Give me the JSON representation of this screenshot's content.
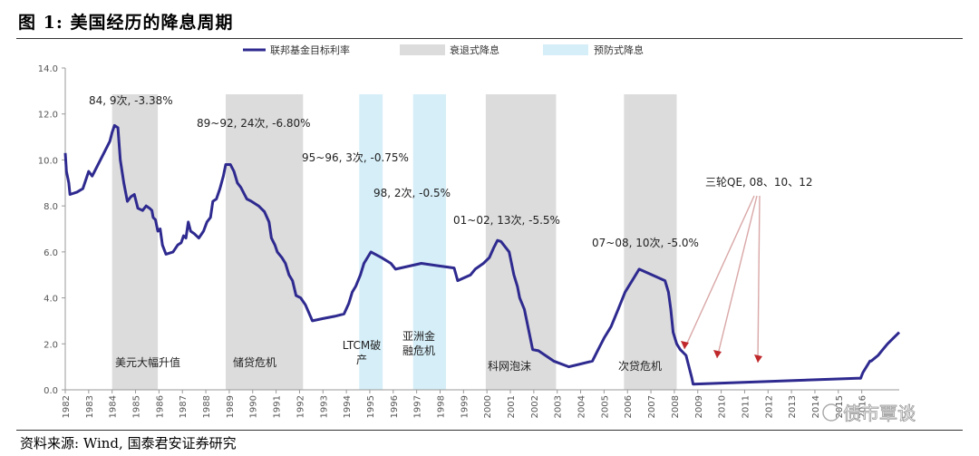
{
  "figure": {
    "title": "图 1: 美国经历的降息周期",
    "source": "资料来源: Wind, 国泰君安证券研究",
    "watermark": "债市覃谈"
  },
  "chart_data": {
    "type": "line",
    "title": "",
    "xlabel": "",
    "ylabel": "",
    "ylim": [
      0,
      14
    ],
    "xlim": [
      1982,
      2016.4
    ],
    "y_ticks": [
      "0.0",
      "2.0",
      "4.0",
      "6.0",
      "8.0",
      "10.0",
      "12.0",
      "14.0"
    ],
    "x_ticks": [
      "1982",
      "1983",
      "1984",
      "1985",
      "1986",
      "1987",
      "1988",
      "1989",
      "1990",
      "1991",
      "1992",
      "1993",
      "1994",
      "1995",
      "1996",
      "1997",
      "1998",
      "1999",
      "2000",
      "2001",
      "2002",
      "2003",
      "2004",
      "2005",
      "2006",
      "2007",
      "2008",
      "2009",
      "2010",
      "2011",
      "2012",
      "2013",
      "2014",
      "2015",
      "2016"
    ],
    "grid": false,
    "legend_position": "top",
    "legend": [
      {
        "label": "联邦基金目标利率",
        "kind": "line",
        "color": "#2e2a8f"
      },
      {
        "label": "衰退式降息",
        "kind": "box",
        "color": "#dcdcdc"
      },
      {
        "label": "预防式降息",
        "kind": "box",
        "color": "#d5eef8"
      }
    ],
    "series": [
      {
        "name": "联邦基金目标利率",
        "color": "#2e2a8f",
        "points": [
          [
            1982.0,
            10.3
          ],
          [
            1982.05,
            9.5
          ],
          [
            1982.15,
            9.0
          ],
          [
            1982.2,
            8.5
          ],
          [
            1982.5,
            8.6
          ],
          [
            1982.75,
            8.75
          ],
          [
            1983.0,
            9.5
          ],
          [
            1983.15,
            9.3
          ],
          [
            1983.3,
            9.6
          ],
          [
            1983.6,
            10.2
          ],
          [
            1983.9,
            10.8
          ],
          [
            1984.0,
            11.2
          ],
          [
            1984.1,
            11.5
          ],
          [
            1984.25,
            11.4
          ],
          [
            1984.35,
            10.0
          ],
          [
            1984.5,
            9.0
          ],
          [
            1984.65,
            8.2
          ],
          [
            1984.8,
            8.4
          ],
          [
            1984.95,
            8.5
          ],
          [
            1985.1,
            7.9
          ],
          [
            1985.3,
            7.8
          ],
          [
            1985.45,
            8.0
          ],
          [
            1985.6,
            7.9
          ],
          [
            1985.7,
            7.8
          ],
          [
            1985.75,
            7.5
          ],
          [
            1985.85,
            7.4
          ],
          [
            1985.95,
            6.9
          ],
          [
            1986.05,
            7.0
          ],
          [
            1986.15,
            6.3
          ],
          [
            1986.3,
            5.9
          ],
          [
            1986.6,
            6.0
          ],
          [
            1986.8,
            6.3
          ],
          [
            1986.95,
            6.4
          ],
          [
            1987.05,
            6.7
          ],
          [
            1987.15,
            6.6
          ],
          [
            1987.25,
            7.3
          ],
          [
            1987.35,
            6.9
          ],
          [
            1987.5,
            6.8
          ],
          [
            1987.7,
            6.6
          ],
          [
            1987.9,
            6.9
          ],
          [
            1988.05,
            7.3
          ],
          [
            1988.2,
            7.5
          ],
          [
            1988.3,
            8.2
          ],
          [
            1988.45,
            8.3
          ],
          [
            1988.6,
            8.75
          ],
          [
            1988.75,
            9.3
          ],
          [
            1988.85,
            9.8
          ],
          [
            1989.05,
            9.8
          ],
          [
            1989.2,
            9.5
          ],
          [
            1989.35,
            9.0
          ],
          [
            1989.5,
            8.8
          ],
          [
            1989.65,
            8.5
          ],
          [
            1989.75,
            8.3
          ],
          [
            1989.95,
            8.2
          ],
          [
            1990.25,
            8.0
          ],
          [
            1990.5,
            7.75
          ],
          [
            1990.7,
            7.3
          ],
          [
            1990.8,
            6.6
          ],
          [
            1990.95,
            6.3
          ],
          [
            1991.05,
            6.0
          ],
          [
            1991.25,
            5.75
          ],
          [
            1991.4,
            5.5
          ],
          [
            1991.55,
            5.0
          ],
          [
            1991.7,
            4.75
          ],
          [
            1991.85,
            4.1
          ],
          [
            1992.05,
            4.0
          ],
          [
            1992.25,
            3.7
          ],
          [
            1992.55,
            3.0
          ],
          [
            1993.0,
            3.1
          ],
          [
            1993.5,
            3.2
          ],
          [
            1993.9,
            3.3
          ],
          [
            1994.1,
            3.75
          ],
          [
            1994.25,
            4.25
          ],
          [
            1994.4,
            4.5
          ],
          [
            1994.6,
            5.0
          ],
          [
            1994.75,
            5.5
          ],
          [
            1995.05,
            6.0
          ],
          [
            1995.5,
            5.75
          ],
          [
            1995.9,
            5.5
          ],
          [
            1996.1,
            5.25
          ],
          [
            1997.2,
            5.5
          ],
          [
            1997.9,
            5.4
          ],
          [
            1998.6,
            5.3
          ],
          [
            1998.75,
            4.75
          ],
          [
            1999.3,
            5.0
          ],
          [
            1999.5,
            5.25
          ],
          [
            1999.85,
            5.5
          ],
          [
            2000.1,
            5.75
          ],
          [
            2000.3,
            6.2
          ],
          [
            2000.45,
            6.5
          ],
          [
            2000.6,
            6.45
          ],
          [
            2000.95,
            6.0
          ],
          [
            2001.05,
            5.5
          ],
          [
            2001.15,
            5.0
          ],
          [
            2001.3,
            4.5
          ],
          [
            2001.4,
            4.0
          ],
          [
            2001.5,
            3.75
          ],
          [
            2001.6,
            3.5
          ],
          [
            2001.7,
            3.0
          ],
          [
            2001.8,
            2.5
          ],
          [
            2001.95,
            1.75
          ],
          [
            2002.2,
            1.7
          ],
          [
            2002.85,
            1.25
          ],
          [
            2003.5,
            1.0
          ],
          [
            2004.5,
            1.25
          ],
          [
            2004.75,
            1.75
          ],
          [
            2005.0,
            2.25
          ],
          [
            2005.3,
            2.75
          ],
          [
            2005.6,
            3.5
          ],
          [
            2005.9,
            4.25
          ],
          [
            2006.2,
            4.75
          ],
          [
            2006.5,
            5.25
          ],
          [
            2007.6,
            4.75
          ],
          [
            2007.75,
            4.25
          ],
          [
            2007.85,
            3.5
          ],
          [
            2007.95,
            2.5
          ],
          [
            2008.1,
            2.0
          ],
          [
            2008.25,
            1.75
          ],
          [
            2008.5,
            1.5
          ],
          [
            2008.75,
            0.5
          ],
          [
            2008.8,
            0.25
          ],
          [
            2015.8,
            0.5
          ],
          [
            2015.95,
            0.5
          ],
          [
            2016.05,
            0.75
          ],
          [
            2016.2,
            1.0
          ],
          [
            2016.35,
            1.25
          ],
          [
            2016.4,
            1.25
          ]
        ],
        "tail_points": [
          [
            2016.4,
            1.25
          ],
          [
            2016.7,
            1.5
          ],
          [
            2016.9,
            1.75
          ],
          [
            2017.1,
            2.0
          ],
          [
            2017.35,
            2.25
          ],
          [
            2017.6,
            2.5
          ]
        ]
      }
    ],
    "shaded_periods": [
      {
        "kind": "recession",
        "start": 1984.0,
        "end": 1985.95,
        "label": "美元大幅升值"
      },
      {
        "kind": "recession",
        "start": 1988.85,
        "end": 1992.15,
        "label": "储贷危机"
      },
      {
        "kind": "preventive",
        "start": 1994.55,
        "end": 1995.55,
        "label": "LTCM破产"
      },
      {
        "kind": "preventive",
        "start": 1996.85,
        "end": 1998.25,
        "label": "亚洲金融危机"
      },
      {
        "kind": "recession",
        "start": 1999.95,
        "end": 2002.95,
        "label": "科网泡沫"
      },
      {
        "kind": "recession",
        "start": 2005.85,
        "end": 2008.1,
        "label": "次贷危机"
      }
    ],
    "annotations": [
      {
        "text": "84, 9次, -3.38%"
      },
      {
        "text": "89~92, 24次, -6.80%"
      },
      {
        "text": "95~96, 3次, -0.75%"
      },
      {
        "text": "98, 2次, -0.5%"
      },
      {
        "text": "01~02, 13次, -5.5%"
      },
      {
        "text": "07~08, 10次, -5.0%"
      },
      {
        "text": "三轮QE, 08、10、12"
      }
    ]
  }
}
